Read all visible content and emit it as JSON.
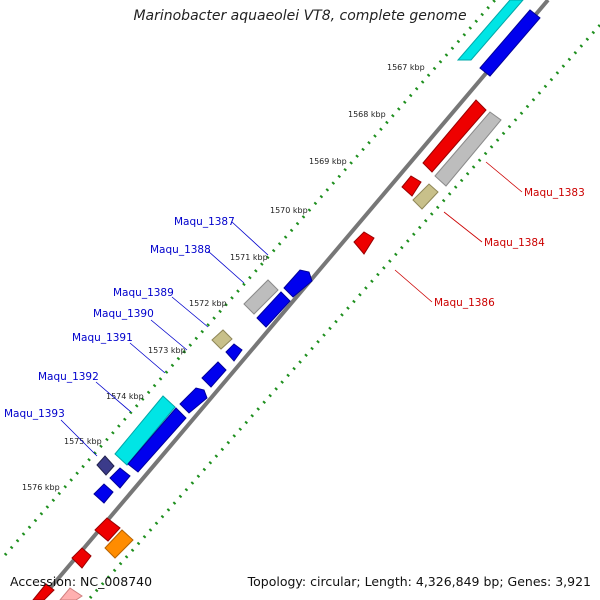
{
  "title": "Marinobacter aquaeolei VT8, complete genome",
  "footer": {
    "accession": "Accession: NC_008740",
    "topology": "Topology: circular; Length: 4,326,849 bp; Genes: 3,921"
  },
  "colors": {
    "backbone": "#777777",
    "tick": "#1e8f1e",
    "forward_label": "#0000cc",
    "reverse_label": "#cc0000",
    "cds_blue": "#0000ee",
    "cds_cyan": "#00e5e5",
    "cds_red": "#ee0000",
    "cds_grey": "#bdbdbd",
    "cds_olive": "#c8c08a",
    "cds_navy": "#3b3b8a",
    "cds_orange": "#ff8c00",
    "cds_pink": "#ffb0b0"
  },
  "kbp_labels": [
    "1567 kbp",
    "1568 kbp",
    "1569 kbp",
    "1570 kbp",
    "1571 kbp",
    "1572 kbp",
    "1573 kbp",
    "1574 kbp",
    "1575 kbp",
    "1576 kbp"
  ],
  "gene_labels": [
    {
      "text": "Maqu_1383",
      "strand": "reverse"
    },
    {
      "text": "Maqu_1384",
      "strand": "reverse"
    },
    {
      "text": "Maqu_1386",
      "strand": "reverse"
    },
    {
      "text": "Maqu_1387",
      "strand": "forward"
    },
    {
      "text": "Maqu_1388",
      "strand": "forward"
    },
    {
      "text": "Maqu_1389",
      "strand": "forward"
    },
    {
      "text": "Maqu_1390",
      "strand": "forward"
    },
    {
      "text": "Maqu_1391",
      "strand": "forward"
    },
    {
      "text": "Maqu_1392",
      "strand": "forward"
    },
    {
      "text": "Maqu_1393",
      "strand": "forward"
    }
  ]
}
